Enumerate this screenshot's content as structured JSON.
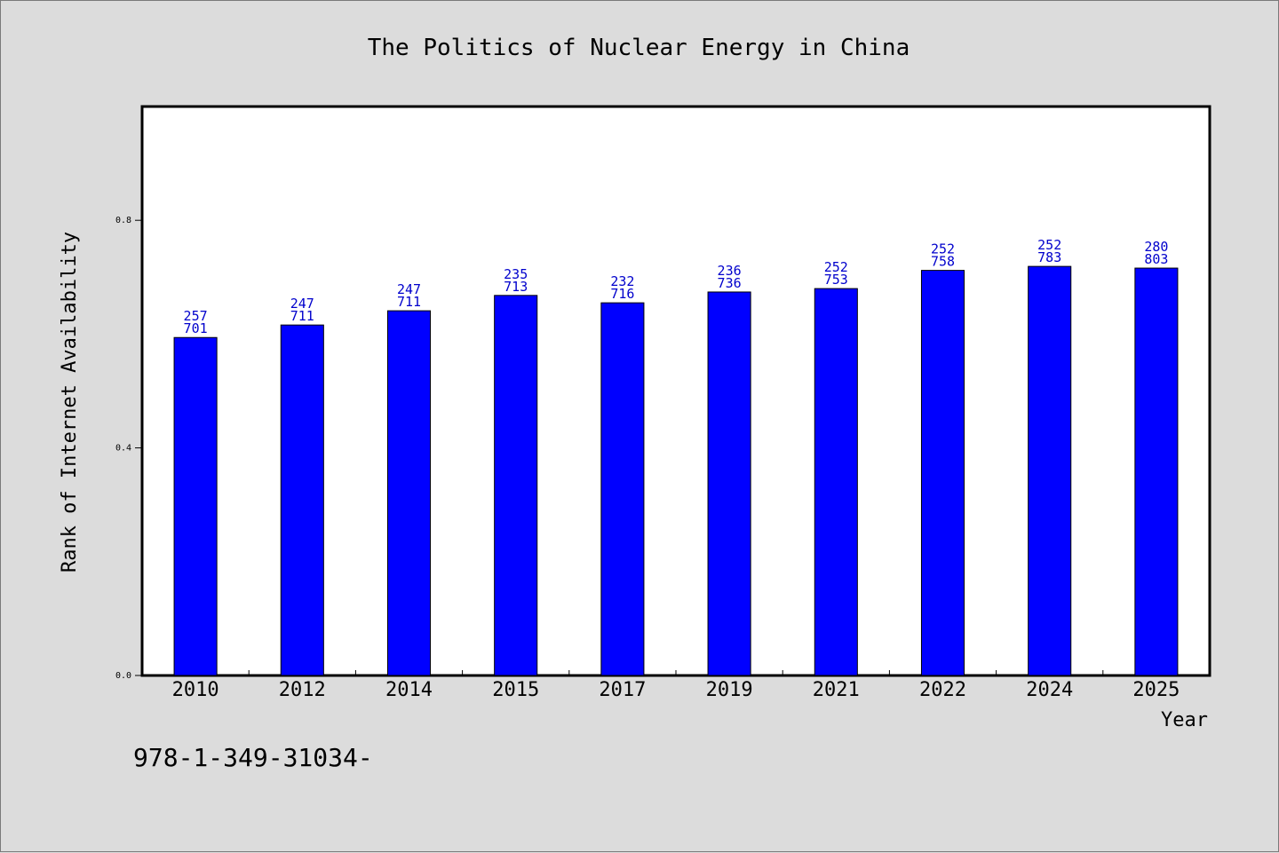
{
  "chart_data": {
    "type": "bar",
    "title": "The Politics of Nuclear Energy in China",
    "xlabel": "Year",
    "ylabel": "Rank of Internet Availability",
    "categories": [
      "2010",
      "2012",
      "2014",
      "2015",
      "2017",
      "2019",
      "2021",
      "2022",
      "2024",
      "2025"
    ],
    "values": [
      0.594,
      0.616,
      0.641,
      0.668,
      0.655,
      0.674,
      0.68,
      0.712,
      0.719,
      0.716
    ],
    "bar_labels": [
      [
        "257",
        "701"
      ],
      [
        "247",
        "711"
      ],
      [
        "247",
        "711"
      ],
      [
        "235",
        "713"
      ],
      [
        "232",
        "716"
      ],
      [
        "236",
        "736"
      ],
      [
        "252",
        "753"
      ],
      [
        "252",
        "758"
      ],
      [
        "252",
        "783"
      ],
      [
        "280",
        "803"
      ]
    ],
    "yticks": [
      "0.0",
      "0.4",
      "0.8"
    ],
    "ylim": [
      0,
      1.0
    ],
    "grid": false,
    "bar_color": "#0000ff",
    "label_color": "#0000cc",
    "plot_background": "#ffffff",
    "figure_background": "#dcdcdc"
  },
  "footer": {
    "note": "978-1-349-31034-"
  }
}
